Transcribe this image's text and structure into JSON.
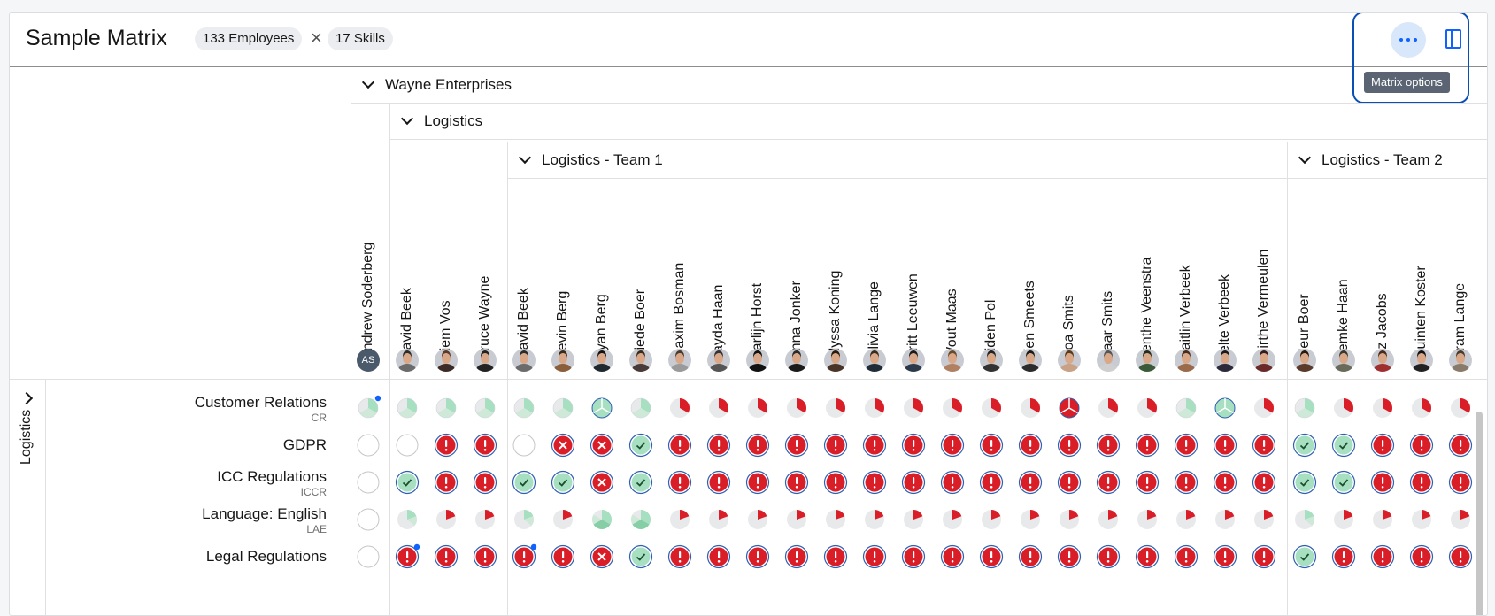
{
  "header": {
    "title": "Sample Matrix",
    "employees_chip": "133 Employees",
    "times": "×",
    "skills_chip": "17 Skills",
    "options_tooltip": "Matrix options"
  },
  "colors": {
    "accent": "#0f62fe",
    "danger": "#da1e28",
    "success": "#a7dfc1",
    "neutral": "#e8e9eb"
  },
  "groups": {
    "org": "Wayne Enterprises",
    "dept": "Logistics",
    "team1": "Logistics - Team 1",
    "team2": "Logistics - Team 2"
  },
  "employees": [
    {
      "name": "Andrew Soderberg",
      "initials": "AS",
      "shirt": "#4b5a6b",
      "hair": "#333"
    },
    {
      "name": "David Beek",
      "shirt": "#6b6b6b",
      "hair": "#2b2b2b"
    },
    {
      "name": "Siem Vos",
      "shirt": "#3b2a26",
      "hair": "#5a3a2a"
    },
    {
      "name": "Bruce Wayne",
      "shirt": "#222",
      "hair": "#222"
    },
    {
      "name": "David Beek",
      "shirt": "#6b6b6b",
      "hair": "#2b2b2b"
    },
    {
      "name": "Kevin Berg",
      "shirt": "#8b5e3c",
      "hair": "#3a2a1a"
    },
    {
      "name": "Kyan Berg",
      "shirt": "#1e2a2e",
      "hair": "#111"
    },
    {
      "name": "Diede Boer",
      "shirt": "#4a3a3a",
      "hair": "#3b2b1b"
    },
    {
      "name": "Maxim Bosman",
      "shirt": "#9a9a9a",
      "hair": "#4a3a2a"
    },
    {
      "name": "Jayda Haan",
      "shirt": "#555",
      "hair": "#333"
    },
    {
      "name": "Karlijn Horst",
      "shirt": "#111",
      "hair": "#111"
    },
    {
      "name": "Anna Jonker",
      "shirt": "#1b1b1b",
      "hair": "#2a2a2a"
    },
    {
      "name": "Alyssa Koning",
      "shirt": "#4a3426",
      "hair": "#2a1a0a"
    },
    {
      "name": "Olivia Lange",
      "shirt": "#1f2b36",
      "hair": "#3a2a1a"
    },
    {
      "name": "Britt Leeuwen",
      "shirt": "#2b3a4a",
      "hair": "#1a1a1a"
    },
    {
      "name": "Wout Maas",
      "shirt": "#b08060",
      "hair": "#6a4a2a"
    },
    {
      "name": "Aiden Pol",
      "shirt": "#333",
      "hair": "#222"
    },
    {
      "name": "Fien Smeets",
      "shirt": "#2b2b2b",
      "hair": "#1a1a1a"
    },
    {
      "name": "Noa Smits",
      "shirt": "#c9a184",
      "hair": "#5a3a1a"
    },
    {
      "name": "Saar Smits",
      "shirt": "#cfcfcf",
      "hair": "#555"
    },
    {
      "name": "Lenthe Veenstra",
      "shirt": "#3a5a3a",
      "hair": "#2a2a1a"
    },
    {
      "name": "Caitlin Verbeek",
      "shirt": "#9a6a4a",
      "hair": "#4a2a1a"
    },
    {
      "name": "Jelte Verbeek",
      "shirt": "#2a2a3a",
      "hair": "#1a1a1a"
    },
    {
      "name": "Mirthe Vermeulen",
      "shirt": "#6a2a2a",
      "hair": "#3a1a1a"
    },
    {
      "name": "Fleur Boer",
      "shirt": "#5a3a2a",
      "hair": "#2a1a0a"
    },
    {
      "name": "Femke Haan",
      "shirt": "#6a6a5a",
      "hair": "#3a3a2a"
    },
    {
      "name": "Liz Jacobs",
      "shirt": "#a03030",
      "hair": "#4a2a1a"
    },
    {
      "name": "Quinten Koster",
      "shirt": "#222",
      "hair": "#111"
    },
    {
      "name": "Bram Lange",
      "shirt": "#8a7a6a",
      "hair": "#4a3a2a"
    }
  ],
  "row_group": "Logistics",
  "skills": [
    {
      "name": "Customer Relations",
      "code": "CR"
    },
    {
      "name": "GDPR",
      "code": ""
    },
    {
      "name": "ICC Regulations",
      "code": "ICCR"
    },
    {
      "name": "Language: English",
      "code": "LAE"
    },
    {
      "name": "Legal Regulations",
      "code": ""
    }
  ],
  "matrix": [
    [
      "pie-green-dot",
      "pie-green",
      "pie-green",
      "pie-green",
      "pie-green",
      "pie-green",
      "pie-green3",
      "pie-green",
      "pie-red",
      "pie-red",
      "pie-red",
      "pie-red",
      "pie-red",
      "pie-red",
      "pie-red",
      "pie-red",
      "pie-red",
      "pie-red",
      "pie-red3",
      "pie-red",
      "pie-red",
      "pie-green",
      "pie-green3",
      "pie-red",
      "pie-green",
      "pie-red",
      "pie-red",
      "pie-red",
      "pie-red"
    ],
    [
      "empty",
      "empty",
      "alert",
      "alert",
      "empty",
      "cross",
      "cross",
      "check",
      "alert",
      "alert",
      "alert",
      "alert",
      "alert",
      "alert",
      "alert",
      "alert",
      "alert",
      "alert",
      "alert",
      "alert",
      "alert",
      "alert",
      "alert",
      "alert",
      "check",
      "check",
      "alert",
      "alert",
      "alert"
    ],
    [
      "empty",
      "check",
      "alert",
      "alert",
      "check",
      "check",
      "cross",
      "check",
      "alert",
      "alert",
      "alert",
      "alert",
      "alert",
      "alert",
      "alert",
      "alert",
      "alert",
      "alert",
      "alert",
      "alert",
      "alert",
      "alert",
      "alert",
      "alert",
      "check",
      "check",
      "alert",
      "alert",
      "alert"
    ],
    [
      "empty",
      "small-green",
      "small-red",
      "small-red",
      "small-green",
      "small-red",
      "big-green",
      "big-green",
      "small-red",
      "small-red",
      "small-red",
      "small-red",
      "small-red",
      "small-red",
      "small-red",
      "small-red",
      "small-red",
      "small-red",
      "small-red",
      "small-red",
      "small-red",
      "small-red",
      "small-red",
      "small-red",
      "small-green",
      "small-red",
      "small-red",
      "small-red",
      "small-red"
    ],
    [
      "empty",
      "alert-dot",
      "alert",
      "alert",
      "alert-dot",
      "alert",
      "cross",
      "check",
      "alert",
      "alert",
      "alert",
      "alert",
      "alert",
      "alert",
      "alert",
      "alert",
      "alert",
      "alert",
      "alert",
      "alert",
      "alert",
      "alert",
      "alert",
      "alert",
      "check",
      "alert",
      "alert",
      "alert",
      "alert"
    ]
  ]
}
